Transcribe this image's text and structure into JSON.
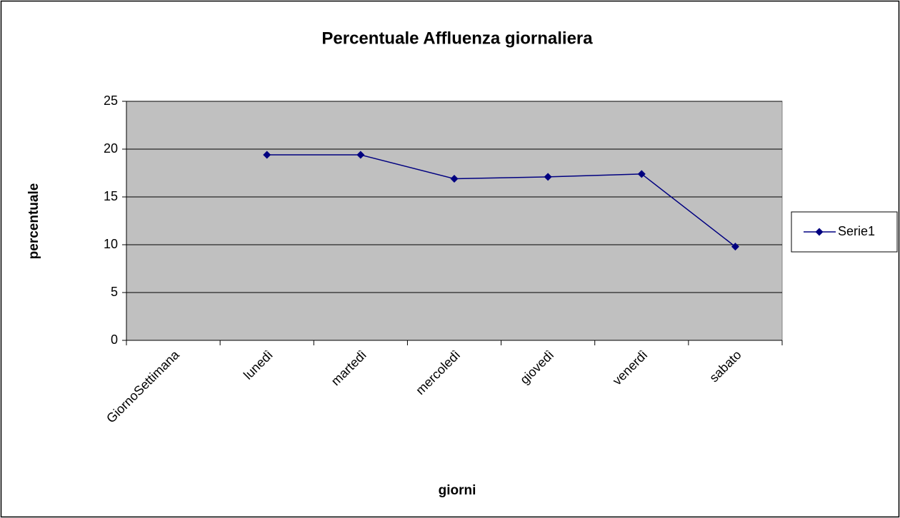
{
  "chart_data": {
    "type": "line",
    "title": "Percentuale Affluenza giornaliera",
    "x_label": "giorni",
    "y_label": "percentuale",
    "categories": [
      "GiornoSettimana",
      "lunedì",
      "martedì",
      "mercoledì",
      "giovedì",
      "venerdì",
      "sabato"
    ],
    "series": [
      {
        "name": "Serie1",
        "color": "#000080",
        "values": [
          null,
          19.4,
          19.4,
          16.9,
          17.1,
          17.4,
          9.8
        ]
      }
    ],
    "ylim": [
      0,
      25
    ],
    "yticks": [
      0,
      5,
      10,
      15,
      20,
      25
    ],
    "grid": true,
    "legend": "right"
  }
}
